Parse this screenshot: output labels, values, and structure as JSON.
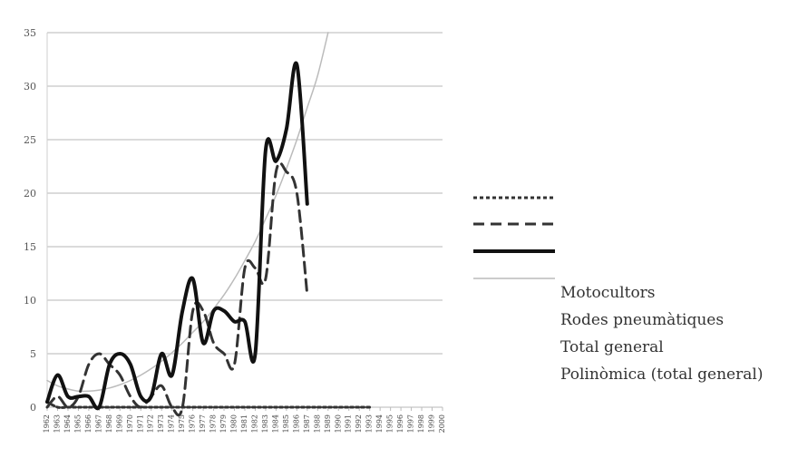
{
  "chart_data": {
    "type": "line",
    "title": "",
    "xlabel": "",
    "ylabel": "",
    "ylim": [
      0,
      35
    ],
    "yticks": [
      0,
      5,
      10,
      15,
      20,
      25,
      30,
      35
    ],
    "grid": true,
    "legend_position": "right",
    "x": [
      "1962",
      "1963",
      "1964",
      "1965",
      "1966",
      "1967",
      "1968",
      "1969",
      "1970",
      "1971",
      "1972",
      "1973",
      "1974",
      "1975",
      "1976",
      "1977",
      "1978",
      "1979",
      "1980",
      "1981",
      "1982",
      "1983",
      "1984",
      "1985",
      "1986",
      "1987",
      "1988",
      "1989",
      "1990",
      "1991",
      "1992",
      "1993",
      "1994",
      "1995",
      "1996",
      "1997",
      "1998",
      "1999",
      "2000"
    ],
    "series": [
      {
        "name": "Motocultors",
        "style": "dotted",
        "color": "#333333",
        "values": [
          0.5,
          0,
          0,
          0,
          0,
          0,
          0,
          0,
          0,
          0,
          0,
          0,
          0,
          0,
          0,
          0,
          0,
          0,
          0,
          0,
          0,
          0,
          0,
          0,
          0,
          0,
          0,
          0,
          0,
          0,
          0,
          0,
          null,
          null,
          null,
          null,
          null,
          null,
          null
        ]
      },
      {
        "name": "Rodes pneumàtiques",
        "style": "dashed",
        "color": "#333333",
        "values": [
          0,
          1,
          0,
          1,
          4,
          5,
          4,
          3,
          1,
          0,
          1,
          2,
          0,
          0,
          9,
          9,
          6,
          5,
          4,
          13,
          13,
          12,
          22,
          22,
          20,
          10.5,
          null,
          null,
          null,
          null,
          null,
          null,
          null,
          null,
          null,
          null,
          null,
          null,
          null
        ]
      },
      {
        "name": "Total general",
        "style": "solid",
        "color": "#111111",
        "values": [
          0.5,
          3,
          1,
          1,
          1,
          0,
          4,
          5,
          4,
          1,
          1,
          5,
          3,
          9,
          12,
          6,
          9,
          9,
          8,
          8,
          5,
          24,
          23,
          26,
          32,
          19,
          null,
          null,
          null,
          null,
          null,
          null,
          null,
          null,
          null,
          null,
          null,
          null,
          null
        ]
      },
      {
        "name": "Polinòmica (total general)",
        "style": "thin",
        "color": "#bbbbbb",
        "values": [
          2.5,
          2,
          1.7,
          1.5,
          1.5,
          1.6,
          1.8,
          2.1,
          2.5,
          3,
          3.6,
          4.3,
          5.1,
          6,
          7,
          8,
          9.2,
          10.5,
          12,
          13.7,
          15.5,
          17.6,
          19.8,
          22.3,
          25,
          28,
          31,
          35,
          null,
          null,
          null,
          null,
          null,
          null,
          null,
          null,
          null,
          null,
          null
        ]
      }
    ]
  },
  "legend": {
    "items": [
      "Motocultors",
      "Rodes pneumàtiques",
      "Total general",
      "Polinòmica (total general)"
    ]
  }
}
